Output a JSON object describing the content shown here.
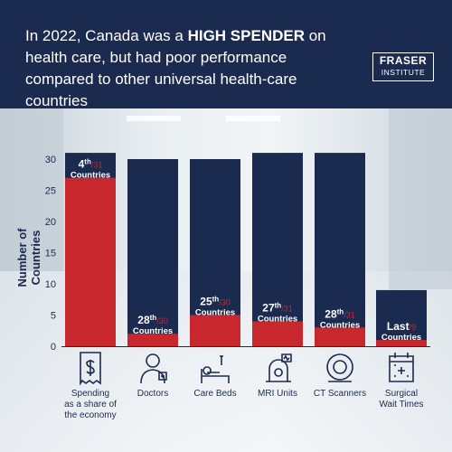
{
  "header": {
    "headline_pre": "In 2022, Canada was a ",
    "headline_bold": "HIGH SPENDER",
    "headline_post": " on health care, but had poor performance compared to other universal health-care countries",
    "logo_line1": "FRASER",
    "logo_line2": "INSTITUTE"
  },
  "colors": {
    "navy": "#1b2a4f",
    "red": "#c8272d",
    "white": "#ffffff"
  },
  "chart_data": {
    "type": "bar",
    "ylabel": "Number of Countries",
    "ylim": [
      0,
      31
    ],
    "yticks": [
      0,
      5,
      10,
      15,
      20,
      25,
      30
    ],
    "categories": [
      "Spending as a share of the economy",
      "Doctors",
      "Care Beds",
      "MRI Units",
      "CT Scanners",
      "Surgical Wait Times"
    ],
    "category_lines": [
      [
        "Spending",
        "as a share of",
        "the economy"
      ],
      [
        "Doctors"
      ],
      [
        "Care Beds"
      ],
      [
        "MRI Units"
      ],
      [
        "CT Scanners"
      ],
      [
        "Surgical",
        "Wait Times"
      ]
    ],
    "icons": [
      "money-receipt-icon",
      "doctor-icon",
      "hospital-bed-icon",
      "mri-machine-icon",
      "ct-scanner-icon",
      "calendar-medical-icon"
    ],
    "series": [
      {
        "values": [
          31,
          30,
          30,
          31,
          31,
          9
        ]
      },
      {
        "values": [
          27,
          2,
          5,
          4,
          3,
          1
        ]
      }
    ],
    "rank_labels": [
      {
        "rank": "4",
        "suffix": "th",
        "total": "31",
        "word": "Countries"
      },
      {
        "rank": "28",
        "suffix": "th",
        "total": "30",
        "word": "Countries"
      },
      {
        "rank": "25",
        "suffix": "th",
        "total": "30",
        "word": "Countries"
      },
      {
        "rank": "27",
        "suffix": "th",
        "total": "31",
        "word": "Countries"
      },
      {
        "rank": "28",
        "suffix": "th",
        "total": "31",
        "word": "Countries"
      },
      {
        "rank": "Last",
        "suffix": "",
        "total": "9",
        "word": "Countries"
      }
    ]
  }
}
